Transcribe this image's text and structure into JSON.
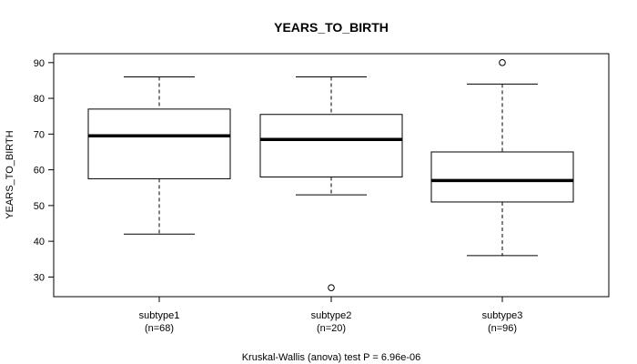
{
  "chart_data": {
    "type": "boxplot",
    "title": "YEARS_TO_BIRTH",
    "xlabel": "",
    "ylabel": "YEARS_TO_BIRTH",
    "ylim": [
      24.5,
      92.5
    ],
    "yticks": [
      30,
      40,
      50,
      60,
      70,
      80,
      90
    ],
    "footer": "Kruskal-Wallis (anova) test P = 6.96e-06",
    "groups": [
      {
        "name": "subtype1",
        "n_label": "(n=68)",
        "whisker_low": 42,
        "q1": 57.5,
        "median": 69.5,
        "q3": 77,
        "whisker_high": 86,
        "outliers": []
      },
      {
        "name": "subtype2",
        "n_label": "(n=20)",
        "whisker_low": 53,
        "q1": 58,
        "median": 68.5,
        "q3": 75.5,
        "whisker_high": 86,
        "outliers": [
          27
        ]
      },
      {
        "name": "subtype3",
        "n_label": "(n=96)",
        "whisker_low": 36,
        "q1": 51,
        "median": 57,
        "q3": 65,
        "whisker_high": 84,
        "outliers": [
          90
        ]
      }
    ]
  }
}
